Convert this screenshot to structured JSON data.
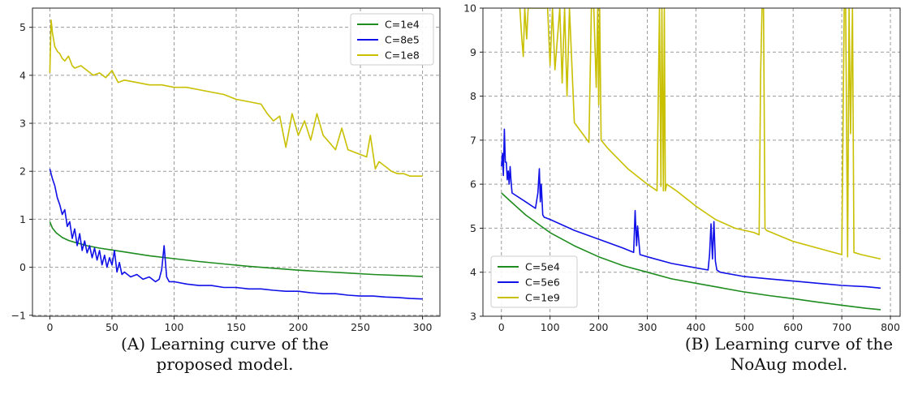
{
  "chart_data": [
    {
      "type": "line",
      "panel": "a",
      "title": "",
      "xlabel": "",
      "ylabel": "",
      "xlim": [
        -14,
        314
      ],
      "ylim": [
        -1.02,
        5.4
      ],
      "xticks": [
        0,
        50,
        100,
        150,
        200,
        250,
        300
      ],
      "yticks": [
        -1,
        0,
        1,
        2,
        3,
        4,
        5
      ],
      "grid": true,
      "legend_position": "top-right",
      "series": [
        {
          "name": "C=1e4",
          "color": "#1f8c1f",
          "x": [
            0,
            2,
            5,
            10,
            15,
            20,
            30,
            40,
            50,
            60,
            80,
            100,
            120,
            140,
            160,
            180,
            200,
            220,
            240,
            260,
            280,
            300
          ],
          "y": [
            0.95,
            0.82,
            0.72,
            0.62,
            0.56,
            0.52,
            0.45,
            0.4,
            0.36,
            0.32,
            0.24,
            0.18,
            0.12,
            0.07,
            0.02,
            -0.02,
            -0.06,
            -0.09,
            -0.12,
            -0.15,
            -0.17,
            -0.19
          ]
        },
        {
          "name": "C=8e5",
          "color": "#1010e8",
          "x": [
            0,
            2,
            4,
            6,
            8,
            10,
            12,
            14,
            16,
            18,
            20,
            22,
            24,
            26,
            28,
            30,
            32,
            34,
            36,
            38,
            40,
            42,
            44,
            46,
            48,
            50,
            52,
            54,
            56,
            58,
            60,
            65,
            70,
            75,
            80,
            85,
            88,
            90,
            92,
            94,
            96,
            100,
            110,
            120,
            130,
            140,
            150,
            160,
            170,
            180,
            190,
            200,
            210,
            220,
            230,
            240,
            250,
            260,
            270,
            280,
            290,
            300
          ],
          "y": [
            2.05,
            1.85,
            1.7,
            1.45,
            1.3,
            1.1,
            1.2,
            0.85,
            0.95,
            0.6,
            0.8,
            0.45,
            0.7,
            0.35,
            0.55,
            0.3,
            0.45,
            0.2,
            0.4,
            0.15,
            0.35,
            0.05,
            0.25,
            0.0,
            0.2,
            0.05,
            0.35,
            -0.1,
            0.1,
            -0.15,
            -0.1,
            -0.2,
            -0.15,
            -0.25,
            -0.2,
            -0.3,
            -0.25,
            -0.05,
            0.45,
            -0.2,
            -0.3,
            -0.3,
            -0.35,
            -0.38,
            -0.38,
            -0.42,
            -0.42,
            -0.45,
            -0.45,
            -0.48,
            -0.5,
            -0.5,
            -0.53,
            -0.55,
            -0.55,
            -0.58,
            -0.6,
            -0.6,
            -0.62,
            -0.63,
            -0.65,
            -0.66
          ]
        },
        {
          "name": "C=1e8",
          "color": "#c8c000",
          "x": [
            0,
            1,
            2,
            4,
            6,
            8,
            10,
            12,
            15,
            18,
            20,
            25,
            30,
            35,
            40,
            45,
            50,
            55,
            60,
            70,
            80,
            90,
            100,
            110,
            120,
            130,
            140,
            150,
            160,
            170,
            175,
            180,
            185,
            190,
            195,
            200,
            205,
            210,
            215,
            220,
            225,
            230,
            235,
            240,
            245,
            250,
            255,
            258,
            262,
            265,
            270,
            275,
            280,
            285,
            290,
            295,
            300
          ],
          "y": [
            4.05,
            5.15,
            4.9,
            4.6,
            4.5,
            4.45,
            4.35,
            4.3,
            4.4,
            4.2,
            4.15,
            4.2,
            4.1,
            4.0,
            4.05,
            3.95,
            4.1,
            3.85,
            3.9,
            3.85,
            3.8,
            3.8,
            3.75,
            3.75,
            3.7,
            3.65,
            3.6,
            3.5,
            3.45,
            3.4,
            3.2,
            3.05,
            3.15,
            2.5,
            3.2,
            2.75,
            3.05,
            2.65,
            3.2,
            2.75,
            2.6,
            2.45,
            2.9,
            2.45,
            2.4,
            2.35,
            2.3,
            2.75,
            2.05,
            2.2,
            2.1,
            2.0,
            1.95,
            1.95,
            1.9,
            1.9,
            1.9
          ]
        }
      ]
    },
    {
      "type": "line",
      "panel": "b",
      "title": "",
      "xlabel": "",
      "ylabel": "",
      "xlim": [
        -38,
        820
      ],
      "ylim": [
        3,
        10
      ],
      "xticks": [
        0,
        100,
        200,
        300,
        400,
        500,
        600,
        700,
        800
      ],
      "yticks": [
        3,
        4,
        5,
        6,
        7,
        8,
        9,
        10
      ],
      "grid": true,
      "legend_position": "bottom-left",
      "series": [
        {
          "name": "C=5e4",
          "color": "#1f8c1f",
          "x": [
            0,
            20,
            50,
            100,
            150,
            200,
            250,
            300,
            350,
            400,
            450,
            500,
            550,
            600,
            650,
            700,
            750,
            780
          ],
          "y": [
            5.8,
            5.6,
            5.3,
            4.9,
            4.6,
            4.35,
            4.15,
            4.0,
            3.85,
            3.75,
            3.65,
            3.55,
            3.47,
            3.4,
            3.32,
            3.25,
            3.18,
            3.15
          ]
        },
        {
          "name": "C=5e6",
          "color": "#1010e8",
          "x": [
            0,
            2,
            4,
            6,
            8,
            10,
            12,
            14,
            16,
            18,
            20,
            22,
            50,
            70,
            75,
            78,
            80,
            82,
            85,
            88,
            100,
            150,
            200,
            250,
            272,
            275,
            278,
            280,
            285,
            300,
            350,
            400,
            425,
            428,
            431,
            434,
            437,
            440,
            443,
            450,
            500,
            550,
            600,
            650,
            700,
            750,
            780
          ],
          "y": [
            6.4,
            6.7,
            6.2,
            7.25,
            6.5,
            6.5,
            6.1,
            6.3,
            6.0,
            6.4,
            6.05,
            5.8,
            5.6,
            5.45,
            5.8,
            6.35,
            5.6,
            6.0,
            5.3,
            5.25,
            5.2,
            4.95,
            4.75,
            4.55,
            4.45,
            5.4,
            4.6,
            5.05,
            4.4,
            4.35,
            4.2,
            4.1,
            4.05,
            4.4,
            5.1,
            4.3,
            5.15,
            4.25,
            4.05,
            4.0,
            3.9,
            3.85,
            3.8,
            3.75,
            3.7,
            3.67,
            3.64
          ]
        },
        {
          "name": "C=1e9",
          "color": "#c8c000",
          "x": [
            38,
            42,
            45,
            48,
            52,
            55,
            60,
            65,
            70,
            75,
            80,
            85,
            90,
            95,
            100,
            105,
            110,
            120,
            125,
            130,
            135,
            140,
            150,
            160,
            170,
            180,
            185,
            190,
            195,
            198,
            200,
            202,
            205,
            220,
            260,
            300,
            320,
            325,
            328,
            330,
            333,
            335,
            337,
            340,
            360,
            400,
            440,
            480,
            520,
            530,
            533,
            536,
            539,
            542,
            545,
            600,
            650,
            700,
            705,
            708,
            712,
            715,
            718,
            722,
            725,
            740,
            780
          ],
          "y": [
            10,
            9.3,
            8.9,
            10,
            9.3,
            10,
            10,
            10,
            10,
            10,
            10,
            10,
            10,
            10,
            8.7,
            10,
            8.6,
            10,
            8.3,
            10,
            8.0,
            10,
            7.4,
            7.25,
            7.1,
            6.95,
            10,
            10,
            8.2,
            10,
            7.8,
            10,
            7.0,
            6.8,
            6.35,
            6.0,
            5.85,
            10,
            5.95,
            10,
            5.85,
            10,
            5.85,
            6.0,
            5.85,
            5.5,
            5.2,
            5.0,
            4.9,
            4.85,
            8.5,
            10,
            10,
            5.0,
            4.95,
            4.7,
            4.55,
            4.4,
            10,
            10,
            4.35,
            10,
            7.15,
            10,
            4.45,
            4.4,
            4.3
          ]
        }
      ]
    }
  ],
  "captions": {
    "a": {
      "label": "(A)",
      "line1": "Learning curve of the",
      "line2": "proposed model."
    },
    "b": {
      "label": "(B)",
      "line1": "Learning curve of the",
      "line2": "NoAug model."
    }
  }
}
